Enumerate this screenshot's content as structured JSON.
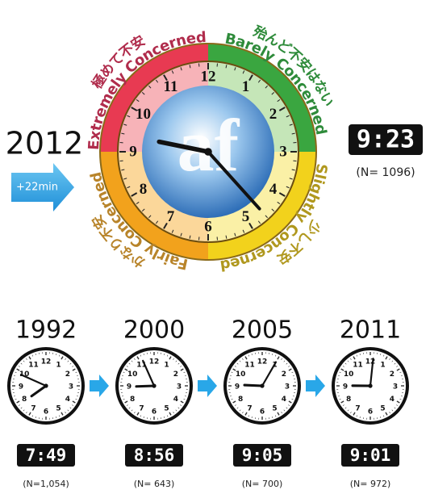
{
  "big_clock": {
    "year": "2012",
    "change": "+22min",
    "time": "9:23",
    "sample": "(N= 1096)",
    "logo": "af",
    "dial_numbers": [
      "12",
      "1",
      "2",
      "3",
      "4",
      "5",
      "6",
      "7",
      "8",
      "9",
      "10",
      "11"
    ],
    "zones": [
      {
        "japanese": "極めて不安",
        "english": "Extremely Concerned"
      },
      {
        "japanese": "殆んど不安はない",
        "english": "Barely Concerned"
      },
      {
        "japanese": "少し不安",
        "english": "Slightly Concerned"
      },
      {
        "japanese": "かなり不安",
        "english": "Fairly Concerned"
      }
    ]
  },
  "history": [
    {
      "year": "1992",
      "time": "7:49",
      "sample": "(N=1,054)"
    },
    {
      "year": "2000",
      "time": "8:56",
      "sample": "(N= 643)"
    },
    {
      "year": "2005",
      "time": "9:05",
      "sample": "(N= 700)"
    },
    {
      "year": "2011",
      "time": "9:01",
      "sample": "(N= 972)"
    }
  ]
}
